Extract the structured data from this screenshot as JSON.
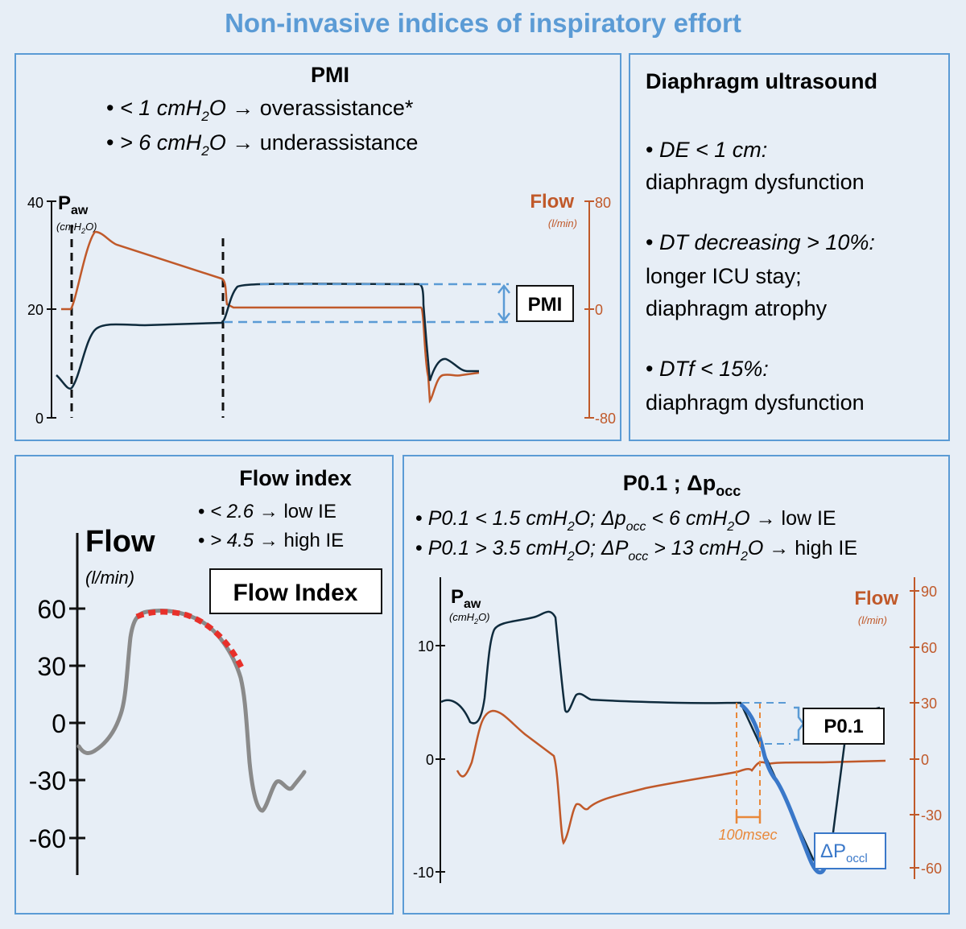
{
  "title": "Non-invasive indices of inspiratory effort",
  "colors": {
    "blue": "#5b9bd5",
    "orange": "#c0592a",
    "navy": "#0f2b3d",
    "red": "#e8302a",
    "grey": "#8a8a8a"
  },
  "pmi": {
    "heading": "PMI",
    "bullets": [
      {
        "pre": "< 1 cmH",
        "sub": "2",
        "post": "O",
        "arrow": " → ",
        "tail": "overassistance*"
      },
      {
        "pre": "> 6 cmH",
        "sub": "2",
        "post": "O",
        "arrow": " → ",
        "tail": "underassistance"
      }
    ],
    "paw_label": "P",
    "paw_sub": "aw",
    "paw_unit_pre": "(cmH",
    "paw_unit_sub": "2",
    "paw_unit_post": "O)",
    "flow_label": "Flow",
    "flow_unit": "(l/min)",
    "left_ticks": [
      "40",
      "20",
      "0"
    ],
    "right_ticks": [
      "80",
      "0",
      "-80"
    ],
    "box_label": "PMI"
  },
  "ultrasound": {
    "heading": "Diaphragm ultrasound",
    "items": [
      {
        "line1": "DE < 1 cm:",
        "line2": "diaphragm dysfunction"
      },
      {
        "line1": "DT decreasing > 10%:",
        "line2": "longer ICU stay;",
        "line3": "diaphragm atrophy"
      },
      {
        "line1": "DTf < 15%:",
        "line2": "diaphragm dysfunction"
      }
    ]
  },
  "flow_index": {
    "heading": "Flow index",
    "bullets": [
      {
        "value": "< 2.6",
        "arrow": " → ",
        "tail": "low IE"
      },
      {
        "value": "> 4.5",
        "arrow": " → ",
        "tail": "high IE"
      }
    ],
    "axis_label": "Flow",
    "axis_unit": "(l/min)",
    "ticks": [
      "60",
      "30",
      "0",
      "-30",
      "-60"
    ],
    "box_label": "Flow Index"
  },
  "p01": {
    "heading_pre": "P0.1 ; Δp",
    "heading_sub": "occ",
    "bullet1": {
      "a": "P0.1 < 1.5 cmH",
      "a_sub": "2",
      "b": "O; Δp",
      "b_sub": "occ",
      "c": " < 6 cmH",
      "c_sub": "2",
      "d": "O",
      "arrow": "  → ",
      "tail": "low IE"
    },
    "bullet2": {
      "a": "P0.1 > 3.5 cmH",
      "a_sub": "2",
      "b": "O; ΔP",
      "b_sub": "occ",
      "c": " > 13 cmH",
      "c_sub": "2",
      "d": "O",
      "arrow": " → ",
      "tail": "high IE"
    },
    "paw_label": "P",
    "paw_sub": "aw",
    "paw_unit_pre": "(cmH",
    "paw_unit_sub": "2",
    "paw_unit_post": "O)",
    "flow_label": "Flow",
    "flow_unit": "(l/min)",
    "left_ticks": [
      "10",
      "0",
      "-10"
    ],
    "right_ticks": [
      "90",
      "60",
      "30",
      "0",
      "-30",
      "-60"
    ],
    "p01_box": "P0.1",
    "time_label": "100msec",
    "dp_label": "ΔP",
    "dp_sub": "occl"
  }
}
